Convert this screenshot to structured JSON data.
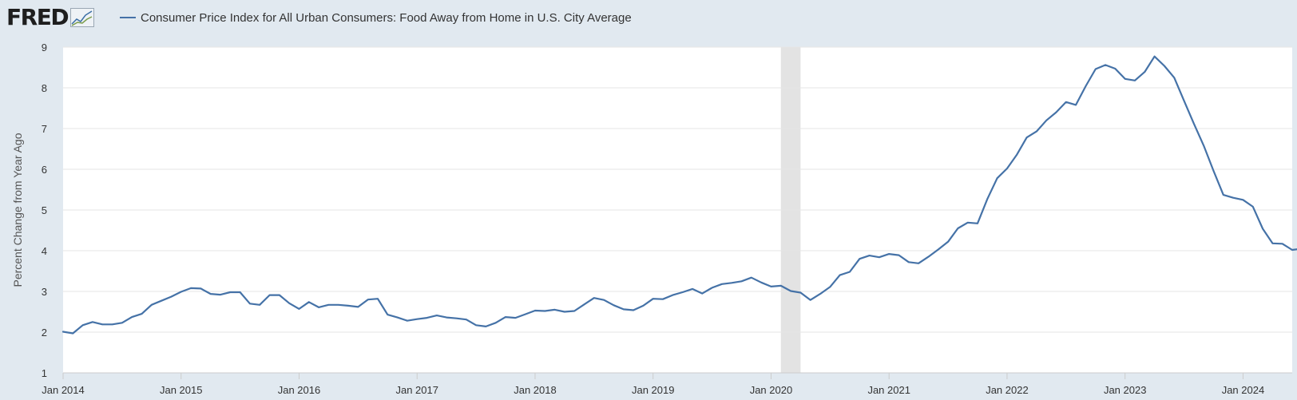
{
  "header": {
    "logo_text": "FRED",
    "logo_icon": "fred-line-chart-icon"
  },
  "colors": {
    "series": "#4572a7",
    "background": "#e1e9f0",
    "plot": "#ffffff",
    "grid": "#e6e6e6",
    "recession": "#e3e3e3",
    "text": "#333333"
  },
  "chart_data": {
    "type": "line",
    "title": "",
    "ylabel": "Percent Change from Year Ago",
    "xlabel": "",
    "ylim": [
      1,
      9
    ],
    "yticks": [
      1,
      2,
      3,
      4,
      5,
      6,
      7,
      8,
      9
    ],
    "xlim": [
      "2014-01",
      "2024-06"
    ],
    "xticks": [
      {
        "date": "2014-01",
        "label": "Jan 2014"
      },
      {
        "date": "2015-01",
        "label": "Jan 2015"
      },
      {
        "date": "2016-01",
        "label": "Jan 2016"
      },
      {
        "date": "2017-01",
        "label": "Jan 2017"
      },
      {
        "date": "2018-01",
        "label": "Jan 2018"
      },
      {
        "date": "2019-01",
        "label": "Jan 2019"
      },
      {
        "date": "2020-01",
        "label": "Jan 2020"
      },
      {
        "date": "2021-01",
        "label": "Jan 2021"
      },
      {
        "date": "2022-01",
        "label": "Jan 2022"
      },
      {
        "date": "2023-01",
        "label": "Jan 2023"
      },
      {
        "date": "2024-01",
        "label": "Jan 2024"
      }
    ],
    "grid": true,
    "legend": "top-left",
    "recession_shading": [
      {
        "start": "2020-02",
        "end": "2020-04"
      }
    ],
    "series": [
      {
        "name": "Consumer Price Index for All Urban Consumers: Food Away from Home in U.S. City Average",
        "start": "2014-01",
        "frequency": "monthly",
        "values": [
          2.01,
          1.97,
          2.17,
          2.25,
          2.19,
          2.19,
          2.23,
          2.37,
          2.45,
          2.67,
          2.77,
          2.87,
          2.99,
          3.08,
          3.07,
          2.94,
          2.92,
          2.98,
          2.98,
          2.7,
          2.67,
          2.91,
          2.91,
          2.71,
          2.57,
          2.74,
          2.61,
          2.67,
          2.67,
          2.65,
          2.62,
          2.8,
          2.82,
          2.43,
          2.36,
          2.28,
          2.32,
          2.35,
          2.41,
          2.36,
          2.34,
          2.31,
          2.17,
          2.14,
          2.23,
          2.37,
          2.35,
          2.44,
          2.53,
          2.52,
          2.55,
          2.5,
          2.52,
          2.68,
          2.84,
          2.79,
          2.66,
          2.56,
          2.54,
          2.65,
          2.82,
          2.81,
          2.91,
          2.98,
          3.06,
          2.95,
          3.09,
          3.18,
          3.21,
          3.25,
          3.34,
          3.22,
          3.12,
          3.14,
          3.01,
          2.97,
          2.79,
          2.94,
          3.11,
          3.4,
          3.48,
          3.8,
          3.88,
          3.84,
          3.92,
          3.89,
          3.72,
          3.69,
          3.85,
          4.03,
          4.22,
          4.55,
          4.69,
          4.67,
          5.27,
          5.78,
          6.02,
          6.36,
          6.78,
          6.93,
          7.2,
          7.4,
          7.65,
          7.58,
          8.04,
          8.46,
          8.56,
          8.47,
          8.22,
          8.18,
          8.39,
          8.77,
          8.54,
          8.25,
          7.68,
          7.12,
          6.58,
          5.96,
          5.37,
          5.3,
          5.25,
          5.08,
          4.54,
          4.18,
          4.17,
          4.02,
          4.05
        ]
      }
    ]
  }
}
